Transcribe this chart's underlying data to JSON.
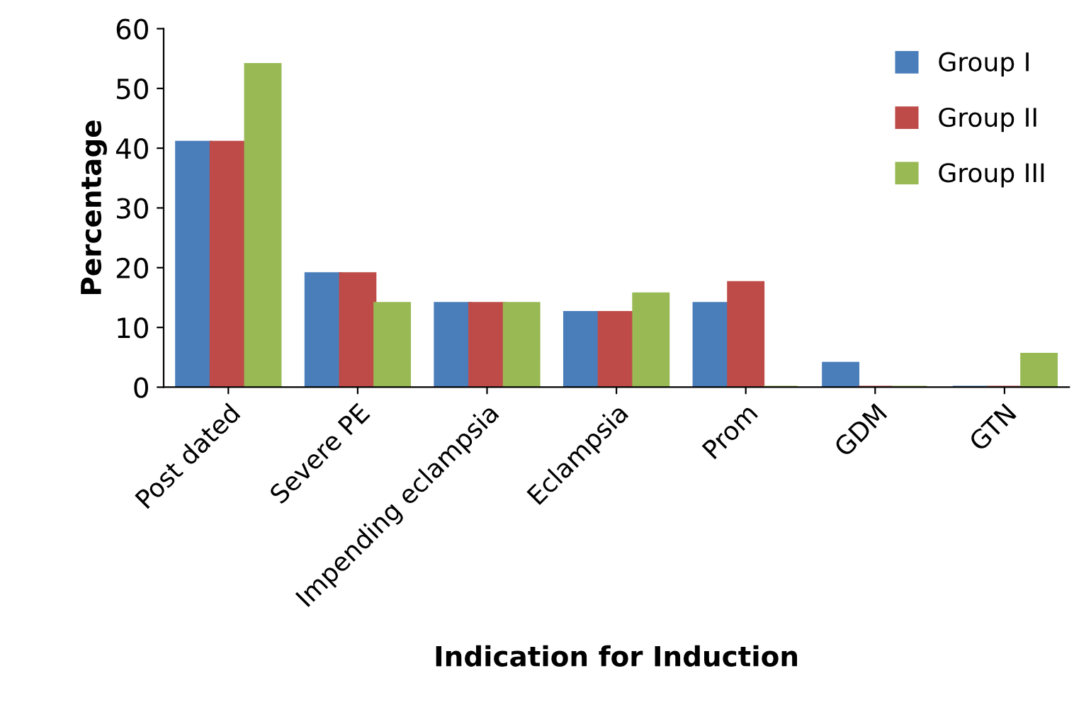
{
  "chart_data": {
    "type": "bar",
    "xlabel": "Indication for Induction",
    "ylabel": "Percentage",
    "categories": [
      "Post dated",
      "Severe PE",
      "Impending eclampsia",
      "Eclampsia",
      "Prom",
      "GDM",
      "GTN"
    ],
    "series": [
      {
        "name": "Group I",
        "color": "#4a7ebb",
        "values": [
          41,
          19,
          14,
          12.5,
          14,
          4,
          0
        ]
      },
      {
        "name": "Group II",
        "color": "#be4b48",
        "values": [
          41,
          19,
          14,
          12.5,
          17.5,
          0,
          0
        ]
      },
      {
        "name": "Group III",
        "color": "#98b954",
        "values": [
          54,
          14,
          14,
          15.6,
          0,
          0,
          5.5
        ]
      }
    ],
    "ylim": [
      0,
      60
    ],
    "yticks": [
      0,
      10,
      20,
      30,
      40,
      50,
      60
    ],
    "grid": false,
    "legend": "top right"
  }
}
